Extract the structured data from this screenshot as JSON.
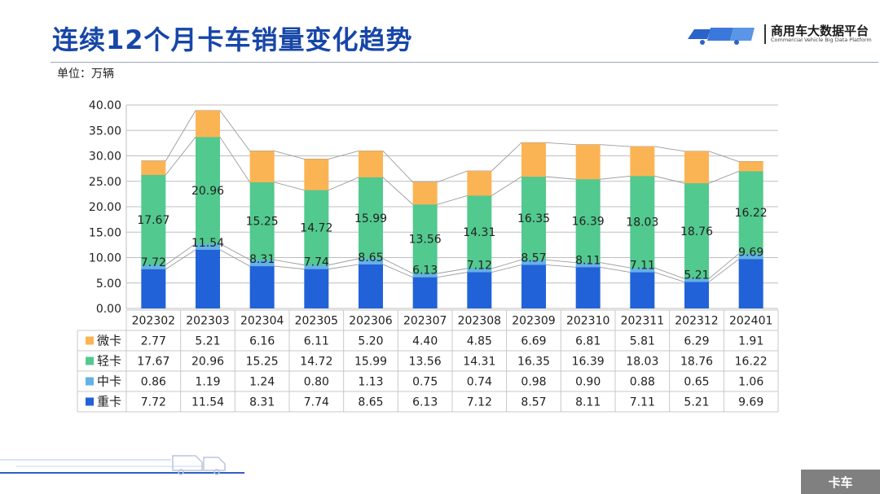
{
  "page": {
    "title": "连续12个月卡车销量变化趋势",
    "unit_label": "单位：万辆",
    "footer_tag": "卡车"
  },
  "logo": {
    "name": "商用车大数据平台",
    "subtitle": "Commercial Vehicle Big Data Platform"
  },
  "colors": {
    "title": "#1746a8",
    "heavy": "#2162d8",
    "medium": "#62b2e6",
    "light": "#52c98e",
    "micro": "#fbb454",
    "grid": "#bfbfbf",
    "footer": "#808080"
  },
  "chart_data": {
    "type": "bar",
    "stacked": true,
    "title": "连续12个月卡车销量变化趋势",
    "xlabel": "",
    "ylabel": "单位：万辆",
    "ylim": [
      0,
      40
    ],
    "yticks": [
      "0.00",
      "5.00",
      "10.00",
      "15.00",
      "20.00",
      "25.00",
      "30.00",
      "35.00",
      "40.00"
    ],
    "grid": true,
    "categories": [
      "202302",
      "202303",
      "202304",
      "202305",
      "202306",
      "202307",
      "202308",
      "202309",
      "202310",
      "202311",
      "202312",
      "202401"
    ],
    "series": [
      {
        "name": "重卡",
        "key": "heavy",
        "values": [
          7.72,
          11.54,
          8.31,
          7.74,
          8.65,
          6.13,
          7.12,
          8.57,
          8.11,
          7.11,
          5.21,
          9.69
        ],
        "labels": [
          "7.72",
          "11.54",
          "8.31",
          "7.74",
          "8.65",
          "6.13",
          "7.12",
          "8.57",
          "8.11",
          "7.11",
          "5.21",
          "9.69"
        ]
      },
      {
        "name": "中卡",
        "key": "medium",
        "values": [
          0.86,
          1.19,
          1.24,
          0.8,
          1.13,
          0.75,
          0.74,
          0.98,
          0.9,
          0.88,
          0.65,
          1.06
        ],
        "labels": [
          "0.86",
          "1.19",
          "1.24",
          "0.80",
          "1.13",
          "0.75",
          "0.74",
          "0.98",
          "0.90",
          "0.88",
          "0.65",
          "1.06"
        ]
      },
      {
        "name": "轻卡",
        "key": "light",
        "values": [
          17.67,
          20.96,
          15.25,
          14.72,
          15.99,
          13.56,
          14.31,
          16.35,
          16.39,
          18.03,
          18.76,
          16.22
        ],
        "labels": [
          "17.67",
          "20.96",
          "15.25",
          "14.72",
          "15.99",
          "13.56",
          "14.31",
          "16.35",
          "16.39",
          "18.03",
          "18.76",
          "16.22"
        ]
      },
      {
        "name": "微卡",
        "key": "micro",
        "values": [
          2.77,
          5.21,
          6.16,
          6.11,
          5.2,
          4.4,
          4.85,
          6.69,
          6.81,
          5.81,
          6.29,
          1.91
        ],
        "labels": [
          "2.77",
          "5.21",
          "6.16",
          "6.11",
          "5.20",
          "4.40",
          "4.85",
          "6.69",
          "6.81",
          "5.81",
          "6.29",
          "1.91"
        ]
      }
    ],
    "table_row_order": [
      "micro",
      "light",
      "medium",
      "heavy"
    ]
  }
}
